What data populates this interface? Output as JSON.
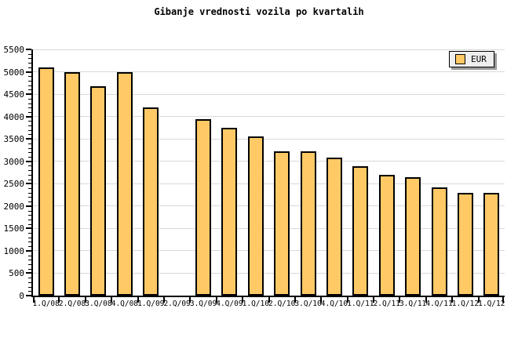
{
  "chart_data": {
    "type": "bar",
    "title": "Gibanje vrednosti vozila po kvartalih",
    "categories": [
      "1.Q/08",
      "2.Q/08",
      "3.Q/08",
      "4.Q/08",
      "1.Q/09",
      "2.Q/09",
      "3.Q/09",
      "4.Q/09",
      "1.Q/10",
      "2.Q/10",
      "3.Q/10",
      "4.Q/10",
      "1.Q/11",
      "2.Q/11",
      "3.Q/11",
      "4.Q/11",
      "1.Q/12",
      "1.Q/12"
    ],
    "series": [
      {
        "name": "EUR",
        "values": [
          5090,
          5000,
          4680,
          5000,
          4210,
          null,
          3950,
          3740,
          3560,
          3230,
          3230,
          3090,
          2890,
          2690,
          2640,
          2420,
          2300,
          2300
        ]
      }
    ],
    "xlabel": "",
    "ylabel": "",
    "ylim": [
      0,
      5500
    ],
    "ytick_step": 500,
    "minor_tick_step": 100,
    "grid": "horizontal",
    "legend_position": "top-right",
    "colors": {
      "bar_fill": "#FFC966",
      "bar_border": "#000000",
      "gridline": "#D9D9D9",
      "axis": "#000000",
      "legend_bg": "#EEEEEE",
      "legend_shadow": "#9A9A9A",
      "background": "#FFFFFF",
      "text": "#000000"
    }
  }
}
